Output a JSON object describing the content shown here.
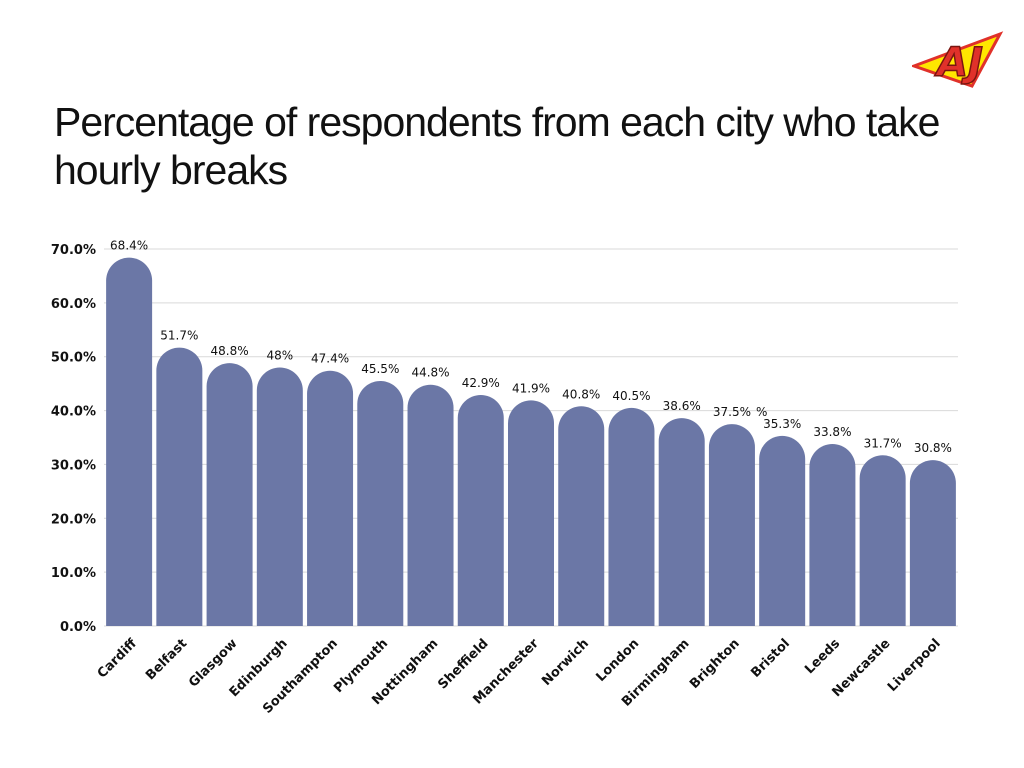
{
  "colors": {
    "bar": "#6b77a6",
    "grid": "#d9d9d9",
    "logo_red": "#e0312a",
    "logo_yellow": "#ffe600"
  },
  "logo": {
    "text": "AJ"
  },
  "chart_data": {
    "type": "bar",
    "title": "Percentage of respondents from each city who take hourly breaks",
    "xlabel": "",
    "ylabel": "",
    "ylim": [
      0,
      70
    ],
    "yticks": [
      {
        "value": 0,
        "label": "0.0%"
      },
      {
        "value": 10,
        "label": "10.0%"
      },
      {
        "value": 20,
        "label": "20.0%"
      },
      {
        "value": 30,
        "label": "30.0%"
      },
      {
        "value": 40,
        "label": "40.0%"
      },
      {
        "value": 50,
        "label": "50.0%"
      },
      {
        "value": 60,
        "label": "60.0%"
      },
      {
        "value": 70,
        "label": "70.0%"
      }
    ],
    "categories": [
      "Cardiff",
      "Belfast",
      "Glasgow",
      "Edinburgh",
      "Southampton",
      "Plymouth",
      "Nottingham",
      "Sheffield",
      "Manchester",
      "Norwich",
      "London",
      "Birmingham",
      "Brighton",
      "Bristol",
      "Leeds",
      "Newcastle",
      "Liverpool"
    ],
    "values": [
      68.4,
      51.7,
      48.8,
      48,
      47.4,
      45.5,
      44.8,
      42.9,
      41.9,
      40.8,
      40.5,
      38.6,
      37.5,
      35.3,
      33.8,
      31.7,
      30.8
    ],
    "data_labels": [
      "68.4%",
      "51.7%",
      "48.8%",
      "48%",
      "47.4%",
      "45.5%",
      "44.8%",
      "42.9%",
      "41.9%",
      "40.8%",
      "40.5%",
      "38.6%",
      "37.5%",
      "35.3%",
      "33.8%",
      "31.7%",
      "30.8%"
    ],
    "extra_labels": [
      {
        "after_category": "Brighton",
        "text": "%"
      }
    ],
    "grid": true,
    "legend": "none"
  }
}
